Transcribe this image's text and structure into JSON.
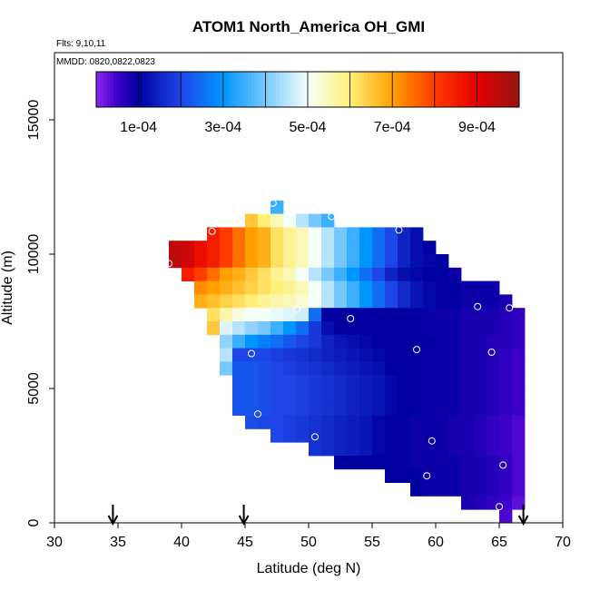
{
  "chart_data": {
    "type": "heatmap",
    "title": "ATOM1 North_America OH_GMI",
    "annotations": [
      "Flts: 9,10,11",
      "MMDD: 0820,0822,0823"
    ],
    "xlabel": "Latitude (deg N)",
    "ylabel": "Altitude (m)",
    "xlim": [
      30,
      70
    ],
    "ylim": [
      0,
      17500
    ],
    "x_ticks": [
      "30",
      "35",
      "40",
      "45",
      "50",
      "55",
      "60",
      "65",
      "70"
    ],
    "y_ticks": [
      "0",
      "5000",
      "10000",
      "15000"
    ],
    "colorbar": {
      "min": 0,
      "max": 0.001,
      "tick_values": [
        0.0001,
        0.0003,
        0.0005,
        0.0007,
        0.0009
      ],
      "tick_labels": [
        "1e-04",
        "3e-04",
        "5e-04",
        "7e-04",
        "9e-04"
      ]
    },
    "cell_size": {
      "lat": 1,
      "alt": 500
    },
    "rows": [
      {
        "alt": 11750,
        "start": 47,
        "values": [
          0.00035
        ]
      },
      {
        "alt": 11250,
        "start": 45,
        "values": [
          0.00065,
          0.0006,
          0.00055,
          0.0005,
          0.00045,
          0.0004,
          0.00035
        ]
      },
      {
        "alt": 10750,
        "start": 42,
        "values": [
          0.00085,
          0.0008,
          0.00075,
          0.0007,
          0.00068,
          0.00062,
          0.00058,
          0.00055,
          0.0005,
          0.00045,
          0.0004,
          0.00035,
          0.0003,
          0.00025,
          0.0002,
          0.00015,
          0.00012
        ]
      },
      {
        "alt": 10250,
        "start": 39,
        "values": [
          0.00095,
          0.00093,
          0.00088,
          0.00085,
          0.0008,
          0.00075,
          0.0007,
          0.00068,
          0.00062,
          0.00058,
          0.00055,
          0.0005,
          0.00045,
          0.0004,
          0.00035,
          0.0003,
          0.00025,
          0.0002,
          0.00015,
          0.00012,
          0.0001
        ]
      },
      {
        "alt": 9750,
        "start": 39,
        "values": [
          0.00095,
          0.00093,
          0.00088,
          0.00085,
          0.0008,
          0.00075,
          0.0007,
          0.00068,
          0.00062,
          0.00058,
          0.00055,
          0.0005,
          0.00045,
          0.0004,
          0.00035,
          0.0003,
          0.00025,
          0.0002,
          0.00015,
          0.00012,
          0.00011,
          0.0001
        ]
      },
      {
        "alt": 9250,
        "start": 40,
        "values": [
          0.00085,
          0.0008,
          0.00075,
          0.0007,
          0.00068,
          0.00065,
          0.00062,
          0.00058,
          0.00055,
          0.0005,
          0.00045,
          0.0004,
          0.00035,
          0.0003,
          0.00025,
          0.0002,
          0.00015,
          0.00012,
          0.00011,
          0.0001,
          0.0001,
          9e-05
        ]
      },
      {
        "alt": 8750,
        "start": 41,
        "values": [
          0.00072,
          0.0007,
          0.00068,
          0.00066,
          0.00064,
          0.00062,
          0.0006,
          0.00058,
          0.00055,
          0.0005,
          0.00045,
          0.0004,
          0.00035,
          0.0003,
          0.00025,
          0.0002,
          0.00016,
          0.00013,
          0.00011,
          0.0001,
          0.0001,
          9e-05,
          9e-05,
          9e-05
        ]
      },
      {
        "alt": 8250,
        "start": 41,
        "values": [
          0.00068,
          0.00066,
          0.00064,
          0.00062,
          0.0006,
          0.00058,
          0.00056,
          0.00055,
          0.00053,
          0.0005,
          0.00045,
          0.0004,
          0.00035,
          0.0003,
          0.00025,
          0.0002,
          0.00016,
          0.00013,
          0.00011,
          0.0001,
          0.0001,
          9e-05,
          9e-05,
          9e-05,
          8e-05
        ]
      },
      {
        "alt": 7750,
        "start": 42,
        "values": [
          0.00062,
          0.00056,
          0.00052,
          0.0005,
          0.0005,
          0.00049,
          0.00048,
          0.00047,
          0.00025,
          0.0001,
          0.0001,
          0.0001,
          0.0001,
          0.0001,
          0.0001,
          0.0001,
          0.0001,
          9e-05,
          9e-05,
          9e-05,
          8e-05,
          8e-05,
          8e-05,
          7e-05,
          6e-05
        ]
      },
      {
        "alt": 7250,
        "start": 42,
        "values": [
          0.00065,
          0.00048,
          0.00045,
          0.00042,
          0.0004,
          0.00035,
          0.0003,
          0.00025,
          0.00018,
          0.00012,
          0.0001,
          0.0001,
          0.0001,
          0.0001,
          0.0001,
          0.0001,
          0.0001,
          9e-05,
          9e-05,
          9e-05,
          8e-05,
          8e-05,
          8e-05,
          7e-05,
          6e-05
        ]
      },
      {
        "alt": 6750,
        "start": 43,
        "values": [
          0.00042,
          0.00035,
          0.0003,
          0.00027,
          0.00025,
          0.00022,
          0.0002,
          0.00018,
          0.00015,
          0.00013,
          0.00012,
          0.00011,
          0.0001,
          0.0001,
          0.0001,
          0.0001,
          0.0001,
          9e-05,
          9e-05,
          8e-05,
          8e-05,
          7e-05,
          7e-05,
          6e-05
        ]
      },
      {
        "alt": 6250,
        "start": 43,
        "values": [
          0.00045,
          0.0002,
          0.0002,
          0.0002,
          0.00019,
          0.00018,
          0.00017,
          0.00016,
          0.00015,
          0.00014,
          0.00013,
          0.00012,
          0.00011,
          0.0001,
          0.0001,
          0.0001,
          9e-05,
          9e-05,
          9e-05,
          8e-05,
          8e-05,
          7e-05,
          6e-05,
          5e-05
        ]
      },
      {
        "alt": 5750,
        "start": 43,
        "values": [
          0.0004,
          0.00022,
          0.00022,
          0.00021,
          0.0002,
          0.00019,
          0.00018,
          0.00017,
          0.00016,
          0.00015,
          0.00014,
          0.00013,
          0.00012,
          0.0001,
          0.0001,
          0.0001,
          9e-05,
          9e-05,
          9e-05,
          8e-05,
          8e-05,
          7e-05,
          6e-05,
          5e-05
        ]
      },
      {
        "alt": 5250,
        "start": 44,
        "values": [
          0.00022,
          0.00022,
          0.00021,
          0.0002,
          0.0002,
          0.00019,
          0.00018,
          0.00017,
          0.00016,
          0.00015,
          0.00014,
          0.00013,
          0.00011,
          0.0001,
          0.0001,
          9e-05,
          9e-05,
          9e-05,
          8e-05,
          8e-05,
          7e-05,
          6e-05,
          5e-05
        ]
      },
      {
        "alt": 4750,
        "start": 44,
        "values": [
          0.00022,
          0.00022,
          0.00021,
          0.0002,
          0.0002,
          0.00019,
          0.00018,
          0.00017,
          0.00016,
          0.00015,
          0.00014,
          0.00013,
          0.00011,
          0.0001,
          0.0001,
          9e-05,
          9e-05,
          9e-05,
          8e-05,
          8e-05,
          7e-05,
          6e-05,
          5e-05
        ]
      },
      {
        "alt": 4250,
        "start": 44,
        "values": [
          0.00022,
          0.00022,
          0.00021,
          0.0002,
          0.0002,
          0.00019,
          0.00018,
          0.00017,
          0.00016,
          0.00015,
          0.00014,
          0.00013,
          0.00011,
          0.0001,
          0.0001,
          9e-05,
          9e-05,
          9e-05,
          8e-05,
          8e-05,
          7e-05,
          6e-05,
          5e-05
        ]
      },
      {
        "alt": 3750,
        "start": 45,
        "values": [
          0.00021,
          0.0002,
          0.0002,
          0.00019,
          0.00018,
          0.00017,
          0.00016,
          0.00015,
          0.00014,
          0.00013,
          0.00011,
          0.0001,
          0.0001,
          9e-05,
          9e-05,
          9e-05,
          8e-05,
          8e-05,
          7e-05,
          6e-05,
          5e-05,
          4e-05
        ]
      },
      {
        "alt": 3250,
        "start": 47,
        "values": [
          0.0002,
          0.00019,
          0.00018,
          0.00017,
          0.00016,
          0.00015,
          0.00014,
          0.00013,
          0.00011,
          0.0001,
          0.0001,
          9e-05,
          9e-05,
          9e-05,
          8e-05,
          8e-05,
          7e-05,
          6e-05,
          5e-05,
          4e-05
        ]
      },
      {
        "alt": 2750,
        "start": 50,
        "values": [
          0.00017,
          0.00016,
          0.00015,
          0.00014,
          0.00013,
          0.00011,
          0.0001,
          0.0001,
          9e-05,
          9e-05,
          9e-05,
          8e-05,
          8e-05,
          7e-05,
          6e-05,
          5e-05,
          4e-05
        ]
      },
      {
        "alt": 2250,
        "start": 52,
        "values": [
          0.0001,
          0.0001,
          0.0001,
          0.0001,
          0.0001,
          0.0001,
          9e-05,
          9e-05,
          9e-05,
          9e-05,
          8e-05,
          8e-05,
          7e-05,
          6e-05,
          4e-05
        ]
      },
      {
        "alt": 1750,
        "start": 56,
        "values": [
          0.0001,
          0.0001,
          0.0001,
          9e-05,
          9e-05,
          9e-05,
          8e-05,
          8e-05,
          7e-05,
          6e-05,
          4e-05
        ]
      },
      {
        "alt": 1250,
        "start": 58,
        "values": [
          0.0001,
          9e-05,
          9e-05,
          9e-05,
          8e-05,
          8e-05,
          7e-05,
          6e-05,
          4e-05
        ]
      },
      {
        "alt": 750,
        "start": 62,
        "values": [
          8e-05,
          7e-05,
          6e-05,
          5e-05,
          3e-05
        ]
      },
      {
        "alt": 250,
        "start": 65,
        "values": [
          4e-05
        ]
      }
    ],
    "points": [
      {
        "lat": 47.2,
        "alt": 11900
      },
      {
        "lat": 51.8,
        "alt": 11400
      },
      {
        "lat": 42.4,
        "alt": 10850
      },
      {
        "lat": 57.1,
        "alt": 10900
      },
      {
        "lat": 39.0,
        "alt": 9650
      },
      {
        "lat": 49.1,
        "alt": 7950
      },
      {
        "lat": 53.3,
        "alt": 7600
      },
      {
        "lat": 63.3,
        "alt": 8050
      },
      {
        "lat": 65.8,
        "alt": 8000
      },
      {
        "lat": 45.5,
        "alt": 6300
      },
      {
        "lat": 58.5,
        "alt": 6450
      },
      {
        "lat": 64.4,
        "alt": 6350
      },
      {
        "lat": 46.0,
        "alt": 4050
      },
      {
        "lat": 50.5,
        "alt": 3200
      },
      {
        "lat": 59.7,
        "alt": 3050
      },
      {
        "lat": 65.3,
        "alt": 2150
      },
      {
        "lat": 59.3,
        "alt": 1750
      },
      {
        "lat": 65.0,
        "alt": 600
      }
    ],
    "flight_marker_lats": [
      34.6,
      44.9,
      66.9
    ]
  }
}
